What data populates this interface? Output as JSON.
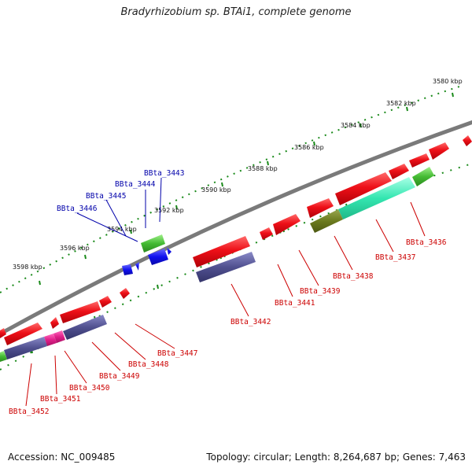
{
  "title": "Bradyrhizobium sp. BTAi1, complete genome",
  "footer": {
    "accession": "Accession: NC_009485",
    "topology": "Topology: circular; Length: 8,264,687 bp; Genes: 7,463"
  },
  "colors": {
    "backbone": "#7a7a7a",
    "ticks": "#1a8a1a",
    "forward_gene": "#e8101a",
    "cog_purple": "#50508f",
    "cog_cyan": "#33e6b0",
    "cog_green": "#44bb33",
    "cog_olive": "#6b7a1e",
    "cog_magenta": "#e0208a",
    "blue_gene": "#1010ee",
    "label_red": "#cc0000",
    "label_blue": "#0000aa"
  },
  "kbp_labels": [
    "3580 kbp",
    "3582 kbp",
    "3584 kbp",
    "3586 kbp",
    "3588 kbp",
    "3590 kbp",
    "3592 kbp",
    "3594 kbp",
    "3596 kbp",
    "3598 kbp"
  ],
  "gene_labels_blue": [
    "BBta_3443",
    "BBta_3444",
    "BBta_3445",
    "BBta_3446"
  ],
  "gene_labels_red": [
    "BBta_3436",
    "BBta_3437",
    "BBta_3438",
    "BBta_3439",
    "BBta_3441",
    "BBta_3442",
    "BBta_3447",
    "BBta_3448",
    "BBta_3449",
    "BBta_3450",
    "BBta_3451",
    "BBta_3452"
  ]
}
